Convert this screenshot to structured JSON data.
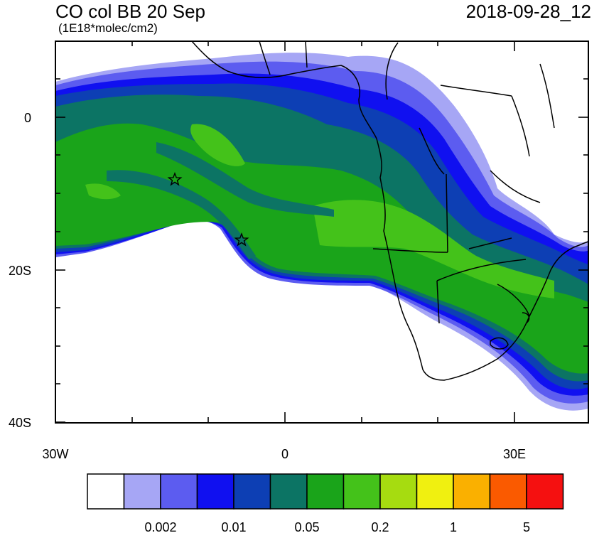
{
  "title": {
    "left": "CO col BB 20 Sep",
    "units": "(1E18*molec/cm2)",
    "right": "2018-09-28_12"
  },
  "axes": {
    "y_labels": [
      "0",
      "20S",
      "40S"
    ],
    "x_labels": [
      "30W",
      "0",
      "30E"
    ]
  },
  "colorbar": {
    "colors": [
      "#ffffff",
      "#a6a6f5",
      "#5c5cf0",
      "#1010f0",
      "#0d3fb4",
      "#0c7464",
      "#1aa41a",
      "#44c21a",
      "#a6dc10",
      "#f0f010",
      "#fab000",
      "#fa5a00",
      "#f51010"
    ],
    "labels": [
      "0.002",
      "0.01",
      "0.05",
      "0.2",
      "1",
      "5"
    ]
  },
  "markers": [
    "star-1",
    "star-2"
  ]
}
